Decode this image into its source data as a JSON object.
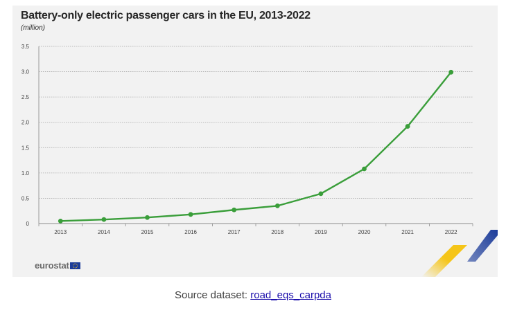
{
  "chart_data": {
    "type": "line",
    "title": "Battery-only electric passenger cars in the EU, 2013-2022",
    "subtitle": "(million)",
    "x": [
      "2013",
      "2014",
      "2015",
      "2016",
      "2017",
      "2018",
      "2019",
      "2020",
      "2021",
      "2022"
    ],
    "series": [
      {
        "name": "Battery-only electric passenger cars",
        "color": "#3a9e3a",
        "values": [
          0.05,
          0.08,
          0.12,
          0.18,
          0.27,
          0.35,
          0.59,
          1.08,
          1.92,
          2.99
        ]
      }
    ],
    "yticks": [
      "0",
      "0.5",
      "1.0",
      "1.5",
      "2.0",
      "2.5",
      "3.0",
      "3.5"
    ],
    "ylim": [
      0,
      3.5
    ],
    "grid": true,
    "xlabel": "",
    "ylabel": ""
  },
  "branding": {
    "logo_text": "eurostat"
  },
  "source": {
    "label": "Source dataset:",
    "link_text": "road_eqs_carpda"
  },
  "colors": {
    "panel": "#f2f2f2",
    "line": "#3a9e3a",
    "gold": "#f5c518",
    "blue": "#1d3d9a"
  }
}
